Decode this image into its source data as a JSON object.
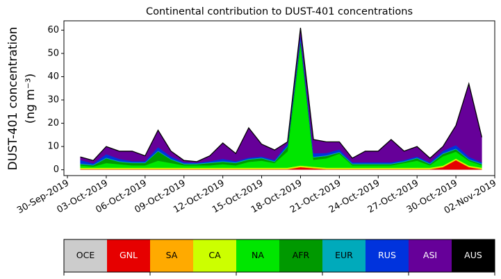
{
  "chart_data": {
    "type": "stacked-area",
    "title": "Continental contribution to DUST-401 concentrations",
    "ylabel": "DUST-401 concentration",
    "ylabel_unit": "(ng m⁻³)",
    "x": [
      "01-Oct-2019",
      "02-Oct-2019",
      "03-Oct-2019",
      "04-Oct-2019",
      "05-Oct-2019",
      "06-Oct-2019",
      "07-Oct-2019",
      "08-Oct-2019",
      "09-Oct-2019",
      "10-Oct-2019",
      "11-Oct-2019",
      "12-Oct-2019",
      "13-Oct-2019",
      "14-Oct-2019",
      "15-Oct-2019",
      "16-Oct-2019",
      "17-Oct-2019",
      "18-Oct-2019",
      "19-Oct-2019",
      "20-Oct-2019",
      "21-Oct-2019",
      "22-Oct-2019",
      "23-Oct-2019",
      "24-Oct-2019",
      "25-Oct-2019",
      "26-Oct-2019",
      "27-Oct-2019",
      "28-Oct-2019",
      "29-Oct-2019",
      "30-Oct-2019",
      "31-Oct-2019",
      "01-Nov-2019"
    ],
    "xlim": [
      "30-Sep-2019",
      "02-Nov-2019"
    ],
    "xticks": [
      "30-Sep-2019",
      "03-Oct-2019",
      "06-Oct-2019",
      "09-Oct-2019",
      "12-Oct-2019",
      "15-Oct-2019",
      "18-Oct-2019",
      "21-Oct-2019",
      "24-Oct-2019",
      "27-Oct-2019",
      "30-Oct-2019",
      "02-Nov-2019"
    ],
    "ylim": [
      -2.5,
      64
    ],
    "yticks": [
      0,
      10,
      20,
      30,
      40,
      50,
      60
    ],
    "series": [
      {
        "name": "OCE",
        "color": "#cccccc",
        "values": [
          0.1,
          0.1,
          0.1,
          0.1,
          0.1,
          0.1,
          0.1,
          0.1,
          0.1,
          0.1,
          0.1,
          0.1,
          0.1,
          0.1,
          0.1,
          0.1,
          0.1,
          0.1,
          0.1,
          0.1,
          0.1,
          0.1,
          0.1,
          0.1,
          0.1,
          0.1,
          0.1,
          0.1,
          0.1,
          0.1,
          0.1,
          0.1
        ]
      },
      {
        "name": "GNL",
        "color": "#e60000",
        "values": [
          0.1,
          0.1,
          0.1,
          0.1,
          0.1,
          0.1,
          0.1,
          0.1,
          0.1,
          0.1,
          0.1,
          0.1,
          0.1,
          0.1,
          0.1,
          0.1,
          0.1,
          1,
          0.5,
          0.1,
          0.1,
          0.1,
          0.1,
          0.1,
          0.1,
          0.1,
          0.1,
          0.1,
          1,
          4,
          1,
          0.1
        ]
      },
      {
        "name": "SA",
        "color": "#ffaa00",
        "values": [
          0.2,
          0.2,
          0.2,
          0.2,
          0.2,
          0.2,
          0.2,
          0.2,
          0.2,
          0.2,
          0.2,
          0.2,
          0.2,
          0.2,
          0.2,
          0.2,
          0.2,
          0.2,
          0.2,
          0.2,
          0.2,
          0.2,
          0.2,
          0.2,
          0.2,
          0.2,
          0.2,
          0.2,
          0.2,
          0.2,
          0.2,
          0.2
        ]
      },
      {
        "name": "CA",
        "color": "#ccff00",
        "values": [
          0.5,
          0.5,
          0.5,
          0.5,
          0.5,
          0.5,
          0.5,
          0.5,
          0.5,
          0.5,
          0.5,
          0.5,
          0.5,
          0.5,
          0.5,
          0.5,
          0.5,
          0.5,
          0.5,
          0.5,
          0.5,
          0.5,
          0.5,
          0.5,
          0.5,
          0.5,
          0.5,
          0.5,
          0.5,
          0.5,
          0.5,
          0.5
        ]
      },
      {
        "name": "NA",
        "color": "#00e600",
        "values": [
          1,
          0.5,
          2,
          1.5,
          1,
          1,
          3,
          2,
          1,
          1,
          1,
          1.5,
          1,
          2.5,
          3,
          2,
          7,
          52,
          3,
          4,
          6,
          1,
          1,
          1,
          1,
          2,
          3,
          1,
          4,
          3,
          2,
          1
        ]
      },
      {
        "name": "AFR",
        "color": "#009900",
        "values": [
          0.5,
          0.5,
          2,
          1,
          1,
          1,
          4,
          1.5,
          0.5,
          0.5,
          1,
          1,
          1,
          1,
          1,
          0.5,
          2,
          2,
          1,
          1,
          0.5,
          0.5,
          0.5,
          0.5,
          0.5,
          0.5,
          1,
          0.5,
          1,
          1,
          0.5,
          0.5
        ]
      },
      {
        "name": "EUR",
        "color": "#00aabb",
        "values": [
          0.3,
          0.3,
          0.3,
          0.3,
          0.3,
          0.3,
          0.3,
          0.3,
          0.3,
          0.3,
          0.3,
          0.3,
          0.3,
          0.3,
          0.3,
          0.3,
          0.3,
          0.3,
          0.3,
          0.3,
          0.3,
          0.3,
          0.3,
          0.3,
          0.3,
          0.3,
          0.3,
          0.3,
          0.3,
          0.3,
          0.3,
          0.3
        ]
      },
      {
        "name": "RUS",
        "color": "#0033dd",
        "values": [
          1.5,
          0.5,
          1.5,
          1,
          0.5,
          0.5,
          1.5,
          1,
          0.5,
          0.3,
          0.5,
          1,
          0.5,
          0.5,
          0.5,
          0.5,
          1,
          2,
          1.5,
          1,
          1,
          0.5,
          0.5,
          0.5,
          0.5,
          0.5,
          0.5,
          0.5,
          1,
          1.5,
          1,
          0.5
        ]
      },
      {
        "name": "ASI",
        "color": "#660099",
        "values": [
          1.3,
          1.3,
          3.3,
          3.3,
          4.3,
          2.3,
          7.3,
          2.3,
          0.8,
          0.5,
          2.3,
          6.8,
          3.3,
          12.8,
          5.3,
          4.3,
          0.8,
          2.9,
          5.9,
          4.8,
          3.3,
          1.8,
          4.8,
          4.8,
          9.8,
          3.8,
          4.3,
          1.8,
          1.9,
          8.4,
          31.4,
          10.8
        ]
      },
      {
        "name": "AUS",
        "color": "#000000",
        "values": [
          0,
          0,
          0,
          0,
          0,
          0,
          0,
          0,
          0,
          0,
          0,
          0,
          0,
          0,
          0,
          0,
          0,
          0,
          0,
          0,
          0,
          0,
          0,
          0,
          0,
          0,
          0,
          0,
          0,
          0,
          0,
          0
        ]
      }
    ]
  }
}
